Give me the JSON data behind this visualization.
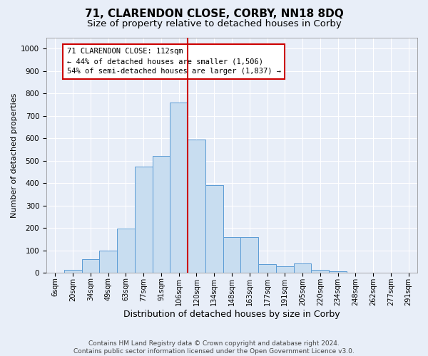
{
  "title_line1": "71, CLARENDON CLOSE, CORBY, NN18 8DQ",
  "title_line2": "Size of property relative to detached houses in Corby",
  "xlabel": "Distribution of detached houses by size in Corby",
  "ylabel": "Number of detached properties",
  "footnote": "Contains HM Land Registry data © Crown copyright and database right 2024.\nContains public sector information licensed under the Open Government Licence v3.0.",
  "bar_labels": [
    "6sqm",
    "20sqm",
    "34sqm",
    "49sqm",
    "63sqm",
    "77sqm",
    "91sqm",
    "106sqm",
    "120sqm",
    "134sqm",
    "148sqm",
    "163sqm",
    "177sqm",
    "191sqm",
    "205sqm",
    "220sqm",
    "234sqm",
    "248sqm",
    "262sqm",
    "277sqm",
    "291sqm"
  ],
  "bar_values": [
    0,
    13,
    62,
    100,
    197,
    473,
    520,
    760,
    595,
    390,
    160,
    160,
    40,
    28,
    43,
    12,
    7,
    0,
    0,
    0,
    0
  ],
  "bar_color": "#c8ddf0",
  "bar_edge_color": "#5b9bd5",
  "vline_x": 7.5,
  "vline_color": "#cc0000",
  "annotation_text": "71 CLARENDON CLOSE: 112sqm\n← 44% of detached houses are smaller (1,506)\n54% of semi-detached houses are larger (1,837) →",
  "annotation_box_color": "#ffffff",
  "annotation_box_edge": "#cc0000",
  "ylim": [
    0,
    1050
  ],
  "yticks": [
    0,
    100,
    200,
    300,
    400,
    500,
    600,
    700,
    800,
    900,
    1000
  ],
  "background_color": "#e8eef8",
  "plot_background": "#e8eef8",
  "grid_color": "#ffffff",
  "title1_fontsize": 11,
  "title2_fontsize": 9.5,
  "xlabel_fontsize": 9,
  "ylabel_fontsize": 8,
  "tick_fontsize": 7,
  "footnote_fontsize": 6.5
}
